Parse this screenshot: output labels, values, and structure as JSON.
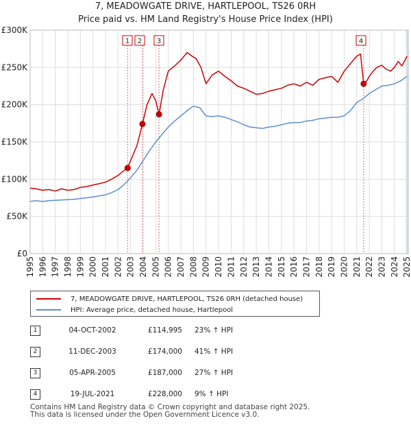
{
  "title": {
    "line1": "7, MEADOWGATE DRIVE, HARTLEPOOL, TS26 0RH",
    "line2": "Price paid vs. HM Land Registry's House Price Index (HPI)"
  },
  "colors": {
    "property": "#cc0000",
    "hpi": "#5b8fce",
    "marker_dash": "#e06666",
    "shade": "#dde6f3"
  },
  "legend": {
    "property_label": "7, MEADOWGATE DRIVE, HARTLEPOOL, TS26 0RH (detached house)",
    "hpi_label": "HPI: Average price, detached house, Hartlepool"
  },
  "sales": [
    {
      "num": "1",
      "date": "04-OCT-2002",
      "price": "£114,995",
      "hpi": "23% ↑ HPI"
    },
    {
      "num": "2",
      "date": "11-DEC-2003",
      "price": "£174,000",
      "hpi": "41% ↑ HPI"
    },
    {
      "num": "3",
      "date": "05-APR-2005",
      "price": "£187,000",
      "hpi": "27% ↑ HPI"
    },
    {
      "num": "4",
      "date": "19-JUL-2021",
      "price": "£228,000",
      "hpi": "9% ↑ HPI"
    }
  ],
  "footer": {
    "line1": "Contains HM Land Registry data © Crown copyright and database right 2025.",
    "line2": "This data is licensed under the Open Government Licence v3.0."
  },
  "chart_data": {
    "type": "line",
    "title": "",
    "xlabel": "",
    "ylabel": "",
    "xlim": [
      1995,
      2025.1
    ],
    "ylim": [
      0,
      300000
    ],
    "grid": true,
    "yticks": [
      {
        "value": 0,
        "label": "£0"
      },
      {
        "value": 50000,
        "label": "£50K"
      },
      {
        "value": 100000,
        "label": "£100K"
      },
      {
        "value": 150000,
        "label": "£150K"
      },
      {
        "value": 200000,
        "label": "£200K"
      },
      {
        "value": 250000,
        "label": "£250K"
      },
      {
        "value": 300000,
        "label": "£300K"
      }
    ],
    "xticks": [
      "1995",
      "1996",
      "1997",
      "1998",
      "1999",
      "2000",
      "2001",
      "2002",
      "2003",
      "2004",
      "2005",
      "2006",
      "2007",
      "2008",
      "2009",
      "2010",
      "2011",
      "2012",
      "2013",
      "2014",
      "2015",
      "2016",
      "2017",
      "2018",
      "2019",
      "2020",
      "2021",
      "2022",
      "2023",
      "2024",
      "2025"
    ],
    "series": [
      {
        "name": "7, MEADOWGATE DRIVE, HARTLEPOOL, TS26 0RH (detached house)",
        "x": [
          1995.0,
          1995.5,
          1996.0,
          1996.5,
          1997.0,
          1997.5,
          1998.0,
          1998.5,
          1999.0,
          1999.5,
          2000.0,
          2000.5,
          2001.0,
          2001.5,
          2002.0,
          2002.5,
          2002.75,
          2003.0,
          2003.5,
          2003.94,
          2004.3,
          2004.7,
          2005.0,
          2005.26,
          2005.6,
          2006.0,
          2006.5,
          2007.0,
          2007.5,
          2007.9,
          2008.2,
          2008.6,
          2009.0,
          2009.5,
          2010.0,
          2010.5,
          2011.0,
          2011.5,
          2012.0,
          2012.5,
          2013.0,
          2013.5,
          2014.0,
          2014.5,
          2015.0,
          2015.5,
          2016.0,
          2016.5,
          2017.0,
          2017.5,
          2018.0,
          2018.5,
          2019.0,
          2019.5,
          2020.0,
          2020.5,
          2021.0,
          2021.3,
          2021.55,
          2021.8,
          2022.0,
          2022.3,
          2022.6,
          2023.0,
          2023.3,
          2023.7,
          2024.0,
          2024.3,
          2024.6,
          2025.0
        ],
        "values": [
          88000,
          87000,
          85000,
          86000,
          84000,
          87000,
          85000,
          86000,
          89000,
          90000,
          92000,
          94000,
          96000,
          100000,
          105000,
          112000,
          114995,
          125000,
          145000,
          174000,
          200000,
          215000,
          205000,
          187000,
          220000,
          245000,
          252000,
          260000,
          270000,
          265000,
          262000,
          250000,
          228000,
          240000,
          245000,
          238000,
          232000,
          225000,
          222000,
          218000,
          214000,
          215000,
          218000,
          220000,
          222000,
          226000,
          228000,
          225000,
          230000,
          226000,
          234000,
          236000,
          238000,
          230000,
          245000,
          255000,
          265000,
          268000,
          228000,
          232000,
          238000,
          245000,
          250000,
          253000,
          248000,
          245000,
          250000,
          258000,
          252000,
          265000
        ]
      },
      {
        "name": "HPI: Average price, detached house, Hartlepool",
        "x": [
          1995.0,
          1995.5,
          1996.0,
          1996.5,
          1997.0,
          1997.5,
          1998.0,
          1998.5,
          1999.0,
          1999.5,
          2000.0,
          2000.5,
          2001.0,
          2001.5,
          2002.0,
          2002.5,
          2003.0,
          2003.5,
          2004.0,
          2004.5,
          2005.0,
          2005.5,
          2006.0,
          2006.5,
          2007.0,
          2007.5,
          2008.0,
          2008.5,
          2009.0,
          2009.5,
          2010.0,
          2010.5,
          2011.0,
          2011.5,
          2012.0,
          2012.5,
          2013.0,
          2013.5,
          2014.0,
          2014.5,
          2015.0,
          2015.5,
          2016.0,
          2016.5,
          2017.0,
          2017.5,
          2018.0,
          2018.5,
          2019.0,
          2019.5,
          2020.0,
          2020.5,
          2021.0,
          2021.5,
          2022.0,
          2022.5,
          2023.0,
          2023.5,
          2024.0,
          2024.5,
          2025.0
        ],
        "values": [
          70000,
          71000,
          70000,
          71000,
          71500,
          72000,
          72500,
          73000,
          74000,
          75000,
          76000,
          77500,
          79000,
          82000,
          86000,
          93000,
          102000,
          112000,
          125000,
          138000,
          150000,
          160000,
          170000,
          178000,
          185000,
          192000,
          198000,
          196000,
          185000,
          184000,
          185000,
          183000,
          180000,
          177000,
          173000,
          170000,
          169000,
          168000,
          170000,
          171000,
          173000,
          175000,
          176000,
          176000,
          178000,
          179000,
          181000,
          182000,
          183000,
          183000,
          185000,
          192000,
          203000,
          208000,
          215000,
          220000,
          225000,
          226000,
          228000,
          232000,
          238000
        ]
      }
    ],
    "sales_markers": [
      {
        "label": "1",
        "x": 2002.76,
        "value": 114995
      },
      {
        "label": "2",
        "x": 2003.94,
        "value": 174000
      },
      {
        "label": "3",
        "x": 2005.26,
        "value": 187000
      },
      {
        "label": "4",
        "x": 2021.55,
        "value": 228000
      }
    ]
  }
}
